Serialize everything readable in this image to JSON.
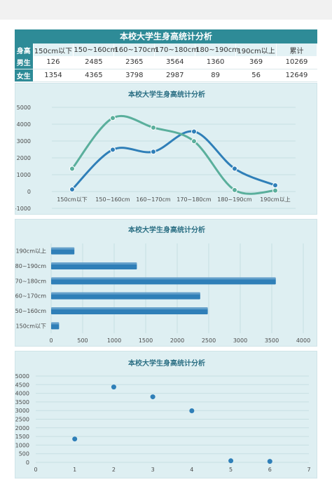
{
  "table": {
    "title": "本校大学生身高统计分析",
    "header_label": "身高",
    "columns": [
      "150cm以下",
      "150~160cm",
      "160~170cm",
      "170~180cm",
      "180~190cm",
      "190cm以上",
      "累计"
    ],
    "rows": [
      {
        "label": "男生",
        "values": [
          "126",
          "2485",
          "2365",
          "3564",
          "1360",
          "369",
          "10269"
        ]
      },
      {
        "label": "女生",
        "values": [
          "1354",
          "4365",
          "3798",
          "2987",
          "89",
          "56",
          "12649"
        ]
      }
    ]
  },
  "chart_data": [
    {
      "type": "line",
      "title": "本校大学生身高统计分析",
      "categories": [
        "150cm以下",
        "150~160cm",
        "160~170cm",
        "170~180cm",
        "180~190cm",
        "190cm以上"
      ],
      "series": [
        {
          "values": [
            126,
            2485,
            2365,
            3564,
            1360,
            369
          ],
          "color": "#2f7fb8"
        },
        {
          "values": [
            1354,
            4365,
            3798,
            2987,
            89,
            56
          ],
          "color": "#5aaf9c"
        }
      ],
      "ylim": [
        -1000,
        5000
      ],
      "yticks": [
        "5000",
        "4000",
        "3000",
        "2000",
        "1000",
        "0",
        "-1000"
      ],
      "grid": true
    },
    {
      "type": "bar",
      "orientation": "horizontal",
      "title": "本校大学生身高统计分析",
      "categories": [
        "190cm以上",
        "180~190cm",
        "170~180cm",
        "160~170cm",
        "150~160cm",
        "150cm以下"
      ],
      "values": [
        369,
        1360,
        3564,
        2365,
        2485,
        126
      ],
      "xlim": [
        0,
        4000
      ],
      "xticks": [
        "0",
        "500",
        "1000",
        "1500",
        "2000",
        "2500",
        "3000",
        "3500",
        "4000"
      ],
      "color": "#2f7fb8",
      "grid": true
    },
    {
      "type": "scatter",
      "title": "本校大学生身高统计分析",
      "x": [
        1,
        2,
        3,
        4,
        5,
        6
      ],
      "y": [
        1354,
        4365,
        3798,
        2987,
        89,
        56
      ],
      "xlim": [
        0,
        7
      ],
      "ylim": [
        0,
        5000
      ],
      "xticks": [
        "0",
        "1",
        "2",
        "3",
        "4",
        "5",
        "6",
        "7"
      ],
      "yticks": [
        "5000",
        "4500",
        "4000",
        "3500",
        "3000",
        "2500",
        "2000",
        "1500",
        "1000",
        "500",
        "0"
      ],
      "color": "#2f7fb8",
      "grid": true
    }
  ]
}
